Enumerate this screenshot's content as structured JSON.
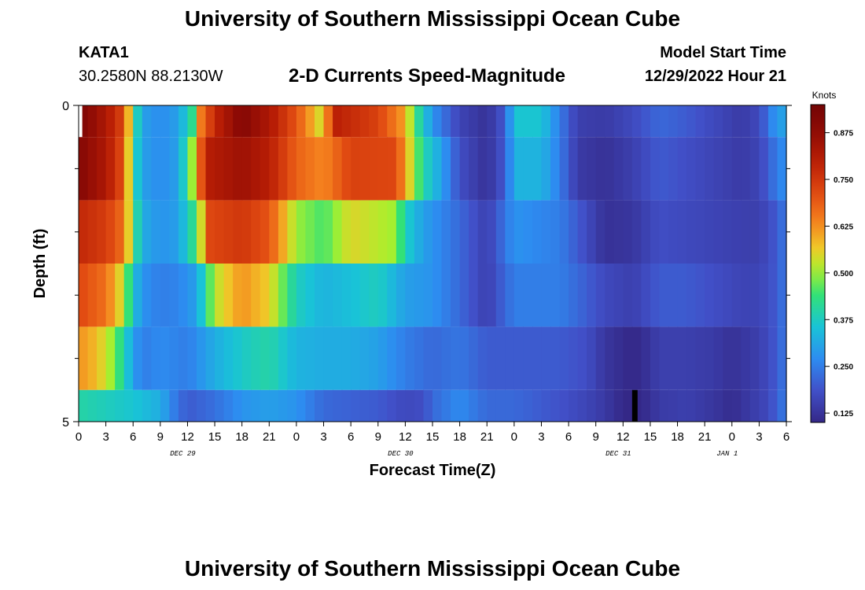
{
  "header": {
    "title": "University of Southern Mississippi Ocean Cube",
    "station": "KATA1",
    "coords": "30.2580N  88.2130W",
    "subtitle": "2-D Currents Speed-Magnitude",
    "model_start_label": "Model Start Time",
    "model_start_value": "12/29/2022 Hour 21"
  },
  "footer": {
    "title": "University of Southern Mississippi Ocean Cube"
  },
  "colors": {
    "black_cell": "#000000",
    "axis": "#000000"
  },
  "chart_data": {
    "type": "heatmap",
    "title": "2-D Currents Speed-Magnitude",
    "xlabel": "Forecast Time(Z)",
    "ylabel": "Depth (ft)",
    "x_range_hours": [
      0,
      78
    ],
    "y_range_ft": [
      0,
      5
    ],
    "x_tick_labels": [
      "0",
      "3",
      "6",
      "9",
      "12",
      "15",
      "18",
      "21",
      "0",
      "3",
      "6",
      "9",
      "12",
      "15",
      "18",
      "21",
      "0",
      "3",
      "6",
      "9",
      "12",
      "15",
      "18",
      "21",
      "0",
      "3",
      "6"
    ],
    "y_tick_labels": [
      "0",
      "5"
    ],
    "y_minor_ticks": [
      1,
      2,
      3,
      4
    ],
    "date_labels": [
      {
        "text": "DEC 29",
        "hour": 12
      },
      {
        "text": "DEC 30",
        "hour": 36
      },
      {
        "text": "DEC 31",
        "hour": 60
      },
      {
        "text": "JAN 1",
        "hour": 72
      }
    ],
    "colorbar": {
      "title": "Knots",
      "min": 0.1,
      "max": 0.95,
      "ticks": [
        0.125,
        0.25,
        0.375,
        0.5,
        0.625,
        0.75,
        0.875
      ],
      "tick_labels": [
        "0.125",
        "0.250",
        "0.375",
        "0.500",
        "0.625",
        "0.750",
        "0.875"
      ]
    },
    "speed_layers": [
      {
        "depth_from": 0,
        "depth_to": 0.5,
        "keyframes": [
          [
            0,
            0.92
          ],
          [
            3,
            0.82
          ],
          [
            5,
            0.72
          ],
          [
            6,
            0.45
          ],
          [
            7,
            0.3
          ],
          [
            9,
            0.27
          ],
          [
            11,
            0.3
          ],
          [
            12.5,
            0.42
          ],
          [
            13.5,
            0.65
          ],
          [
            15,
            0.78
          ],
          [
            18,
            0.9
          ],
          [
            21,
            0.82
          ],
          [
            24,
            0.7
          ],
          [
            27,
            0.52
          ],
          [
            28,
            0.8
          ],
          [
            33,
            0.73
          ],
          [
            36,
            0.6
          ],
          [
            37,
            0.45
          ],
          [
            39,
            0.28
          ],
          [
            42,
            0.16
          ],
          [
            45,
            0.12
          ],
          [
            47,
            0.2
          ],
          [
            48,
            0.36
          ],
          [
            51,
            0.36
          ],
          [
            53,
            0.25
          ],
          [
            55,
            0.15
          ],
          [
            58,
            0.14
          ],
          [
            61,
            0.17
          ],
          [
            64,
            0.22
          ],
          [
            67,
            0.2
          ],
          [
            70,
            0.17
          ],
          [
            73,
            0.14
          ],
          [
            75,
            0.17
          ],
          [
            77,
            0.3
          ],
          [
            78,
            0.3
          ]
        ]
      },
      {
        "depth_from": 0.5,
        "depth_to": 1.5,
        "keyframes": [
          [
            0,
            0.9
          ],
          [
            3,
            0.82
          ],
          [
            5,
            0.7
          ],
          [
            6,
            0.42
          ],
          [
            7,
            0.3
          ],
          [
            9,
            0.27
          ],
          [
            11,
            0.3
          ],
          [
            12.5,
            0.5
          ],
          [
            14,
            0.8
          ],
          [
            18,
            0.85
          ],
          [
            21,
            0.8
          ],
          [
            24,
            0.68
          ],
          [
            27,
            0.63
          ],
          [
            30,
            0.73
          ],
          [
            35,
            0.72
          ],
          [
            36,
            0.6
          ],
          [
            38,
            0.4
          ],
          [
            40,
            0.3
          ],
          [
            42,
            0.18
          ],
          [
            45,
            0.12
          ],
          [
            47,
            0.2
          ],
          [
            48,
            0.33
          ],
          [
            51,
            0.33
          ],
          [
            53,
            0.25
          ],
          [
            55,
            0.14
          ],
          [
            58,
            0.12
          ],
          [
            61,
            0.15
          ],
          [
            64,
            0.2
          ],
          [
            67,
            0.18
          ],
          [
            70,
            0.16
          ],
          [
            73,
            0.14
          ],
          [
            75,
            0.16
          ],
          [
            77,
            0.25
          ],
          [
            78,
            0.28
          ]
        ]
      },
      {
        "depth_from": 1.5,
        "depth_to": 2.5,
        "keyframes": [
          [
            0,
            0.78
          ],
          [
            3,
            0.74
          ],
          [
            5,
            0.66
          ],
          [
            6,
            0.46
          ],
          [
            7,
            0.32
          ],
          [
            9,
            0.28
          ],
          [
            11,
            0.3
          ],
          [
            13,
            0.45
          ],
          [
            14.5,
            0.72
          ],
          [
            18,
            0.75
          ],
          [
            21,
            0.7
          ],
          [
            24,
            0.5
          ],
          [
            27,
            0.45
          ],
          [
            30,
            0.55
          ],
          [
            35,
            0.5
          ],
          [
            36,
            0.38
          ],
          [
            38,
            0.3
          ],
          [
            42,
            0.22
          ],
          [
            45,
            0.15
          ],
          [
            48,
            0.28
          ],
          [
            53,
            0.25
          ],
          [
            55,
            0.2
          ],
          [
            58,
            0.12
          ],
          [
            61,
            0.13
          ],
          [
            64,
            0.18
          ],
          [
            67,
            0.17
          ],
          [
            70,
            0.16
          ],
          [
            73,
            0.15
          ],
          [
            75,
            0.15
          ],
          [
            77,
            0.2
          ],
          [
            78,
            0.25
          ]
        ]
      },
      {
        "depth_from": 2.5,
        "depth_to": 3.5,
        "keyframes": [
          [
            0,
            0.72
          ],
          [
            3,
            0.66
          ],
          [
            5,
            0.52
          ],
          [
            6,
            0.36
          ],
          [
            7,
            0.28
          ],
          [
            9,
            0.25
          ],
          [
            11,
            0.26
          ],
          [
            13,
            0.3
          ],
          [
            15,
            0.52
          ],
          [
            18,
            0.62
          ],
          [
            21,
            0.56
          ],
          [
            24,
            0.38
          ],
          [
            27,
            0.33
          ],
          [
            30,
            0.35
          ],
          [
            33,
            0.38
          ],
          [
            36,
            0.3
          ],
          [
            39,
            0.28
          ],
          [
            42,
            0.22
          ],
          [
            45,
            0.15
          ],
          [
            48,
            0.25
          ],
          [
            53,
            0.25
          ],
          [
            55,
            0.22
          ],
          [
            58,
            0.17
          ],
          [
            61,
            0.15
          ],
          [
            64,
            0.2
          ],
          [
            67,
            0.2
          ],
          [
            70,
            0.18
          ],
          [
            73,
            0.16
          ],
          [
            75,
            0.16
          ],
          [
            77,
            0.2
          ],
          [
            78,
            0.25
          ]
        ]
      },
      {
        "depth_from": 3.5,
        "depth_to": 4.5,
        "keyframes": [
          [
            0,
            0.62
          ],
          [
            2,
            0.58
          ],
          [
            4,
            0.48
          ],
          [
            6,
            0.3
          ],
          [
            7,
            0.25
          ],
          [
            9,
            0.27
          ],
          [
            12,
            0.25
          ],
          [
            15,
            0.32
          ],
          [
            18,
            0.37
          ],
          [
            21,
            0.4
          ],
          [
            24,
            0.33
          ],
          [
            27,
            0.32
          ],
          [
            30,
            0.32
          ],
          [
            33,
            0.3
          ],
          [
            36,
            0.25
          ],
          [
            39,
            0.22
          ],
          [
            42,
            0.24
          ],
          [
            45,
            0.2
          ],
          [
            48,
            0.2
          ],
          [
            53,
            0.2
          ],
          [
            56,
            0.18
          ],
          [
            58,
            0.13
          ],
          [
            60,
            0.11
          ],
          [
            61,
            0.1
          ],
          [
            62,
            0.11
          ],
          [
            64,
            0.15
          ],
          [
            67,
            0.15
          ],
          [
            70,
            0.14
          ],
          [
            72,
            0.12
          ],
          [
            75,
            0.15
          ],
          [
            77,
            0.2
          ],
          [
            78,
            0.25
          ]
        ]
      },
      {
        "depth_from": 4.5,
        "depth_to": 5,
        "keyframes": [
          [
            0,
            0.4
          ],
          [
            3,
            0.38
          ],
          [
            6,
            0.36
          ],
          [
            9,
            0.32
          ],
          [
            10.5,
            0.25
          ],
          [
            12,
            0.2
          ],
          [
            15,
            0.23
          ],
          [
            18,
            0.28
          ],
          [
            21,
            0.3
          ],
          [
            24,
            0.28
          ],
          [
            27,
            0.22
          ],
          [
            30,
            0.21
          ],
          [
            33,
            0.2
          ],
          [
            36,
            0.17
          ],
          [
            38,
            0.18
          ],
          [
            39,
            0.22
          ],
          [
            42,
            0.27
          ],
          [
            45,
            0.22
          ],
          [
            48,
            0.22
          ],
          [
            51,
            0.2
          ],
          [
            54,
            0.18
          ],
          [
            57,
            0.15
          ],
          [
            59,
            0.12
          ],
          [
            60,
            0.1
          ],
          [
            62,
            0.1
          ],
          [
            64,
            0.14
          ],
          [
            67,
            0.15
          ],
          [
            70,
            0.13
          ],
          [
            72,
            0.11
          ],
          [
            74,
            0.14
          ],
          [
            76,
            0.17
          ],
          [
            78,
            0.25
          ]
        ]
      }
    ],
    "masked_cells": [
      {
        "hour_from": 61.0,
        "hour_to": 61.6,
        "depth_from": 4.5,
        "depth_to": 5
      },
      {
        "hour_from": 0,
        "hour_to": 0.4,
        "depth_from": 0,
        "depth_to": 0.5
      }
    ]
  }
}
